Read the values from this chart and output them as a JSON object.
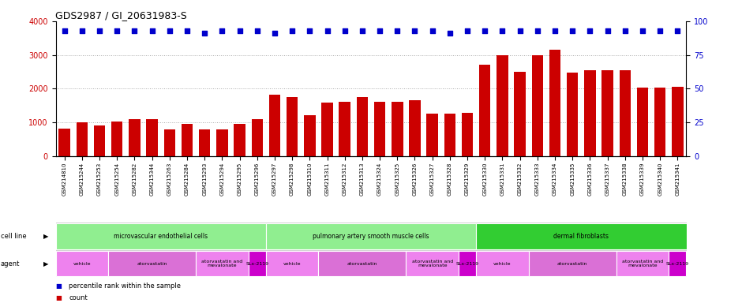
{
  "title": "GDS2987 / GI_20631983-S",
  "samples": [
    "GSM214810",
    "GSM215244",
    "GSM215253",
    "GSM215254",
    "GSM215282",
    "GSM215344",
    "GSM215263",
    "GSM215284",
    "GSM215293",
    "GSM215294",
    "GSM215295",
    "GSM215296",
    "GSM215297",
    "GSM215298",
    "GSM215310",
    "GSM215311",
    "GSM215312",
    "GSM215313",
    "GSM215324",
    "GSM215325",
    "GSM215326",
    "GSM215327",
    "GSM215328",
    "GSM215329",
    "GSM215330",
    "GSM215331",
    "GSM215332",
    "GSM215333",
    "GSM215334",
    "GSM215335",
    "GSM215336",
    "GSM215337",
    "GSM215338",
    "GSM215339",
    "GSM215340",
    "GSM215341"
  ],
  "counts": [
    820,
    1000,
    900,
    1020,
    1100,
    1100,
    780,
    950,
    800,
    780,
    950,
    1100,
    1820,
    1750,
    1200,
    1580,
    1600,
    1750,
    1600,
    1620,
    1650,
    1270,
    1270,
    1280,
    2700,
    3000,
    2500,
    2980,
    3150,
    2480,
    2550,
    2550,
    2550,
    2020,
    2030,
    2050
  ],
  "percentile_ranks": [
    93,
    93,
    93,
    93,
    93,
    93,
    93,
    93,
    91,
    93,
    93,
    93,
    91,
    93,
    93,
    93,
    93,
    93,
    93,
    93,
    93,
    93,
    91,
    93,
    93,
    93,
    93,
    93,
    93,
    93,
    93,
    93,
    93,
    93,
    93,
    93
  ],
  "bar_color": "#cc0000",
  "dot_color": "#0000cc",
  "ylim_left": [
    0,
    4000
  ],
  "ylim_right": [
    0,
    100
  ],
  "yticks_left": [
    0,
    1000,
    2000,
    3000,
    4000
  ],
  "yticks_right": [
    0,
    25,
    50,
    75,
    100
  ],
  "cell_line_groups": [
    {
      "label": "microvascular endothelial cells",
      "start": 0,
      "end": 11,
      "color": "#90ee90"
    },
    {
      "label": "pulmonary artery smooth muscle cells",
      "start": 12,
      "end": 23,
      "color": "#90ee90"
    },
    {
      "label": "dermal fibroblasts",
      "start": 24,
      "end": 35,
      "color": "#32cd32"
    }
  ],
  "agent_groups": [
    {
      "label": "vehicle",
      "start": 0,
      "end": 2,
      "color": "#ee82ee"
    },
    {
      "label": "atorvastatin",
      "start": 3,
      "end": 7,
      "color": "#da70d6"
    },
    {
      "label": "atorvastatin and\nmevalonate",
      "start": 8,
      "end": 10,
      "color": "#ee82ee"
    },
    {
      "label": "SLx-2119",
      "start": 11,
      "end": 11,
      "color": "#cc00cc"
    },
    {
      "label": "vehicle",
      "start": 12,
      "end": 14,
      "color": "#ee82ee"
    },
    {
      "label": "atorvastatin",
      "start": 15,
      "end": 19,
      "color": "#da70d6"
    },
    {
      "label": "atorvastatin and\nmevalonate",
      "start": 20,
      "end": 22,
      "color": "#ee82ee"
    },
    {
      "label": "SLx-2119",
      "start": 23,
      "end": 23,
      "color": "#cc00cc"
    },
    {
      "label": "vehicle",
      "start": 24,
      "end": 26,
      "color": "#ee82ee"
    },
    {
      "label": "atorvastatin",
      "start": 27,
      "end": 31,
      "color": "#da70d6"
    },
    {
      "label": "atorvastatin and\nmevalonate",
      "start": 32,
      "end": 34,
      "color": "#ee82ee"
    },
    {
      "label": "SLx-2119",
      "start": 35,
      "end": 35,
      "color": "#cc00cc"
    }
  ],
  "background_color": "#ffffff",
  "grid_color": "#aaaaaa",
  "title_fontsize": 9,
  "tick_fontsize": 5,
  "bar_width": 0.65
}
